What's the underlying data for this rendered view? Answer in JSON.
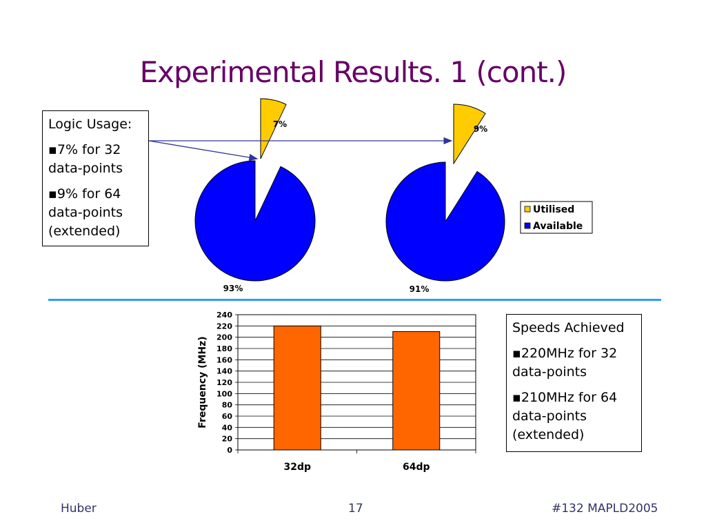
{
  "slide": {
    "title": "Experimental Results. 1 (cont.)",
    "logic_box": {
      "heading": "Logic Usage:",
      "items": [
        "▪7% for 32 data-points",
        "▪9% for 64 data-points (extended)"
      ]
    },
    "speed_box": {
      "heading": "Speeds Achieved",
      "items": [
        "▪220MHz for 32 data-points",
        "▪210MHz for 64 data-points (extended)"
      ]
    },
    "footer": {
      "left": "Huber",
      "center": "17",
      "right": "#132 MAPLD2005"
    }
  },
  "colors": {
    "title": "#660066",
    "utilised": "#ffcc00",
    "available": "#0000ff",
    "bar": "#ff6600",
    "divider": "#3399ff"
  },
  "chart_data": [
    {
      "type": "pie",
      "series": [
        {
          "labels": [
            "Utilised",
            "Available"
          ],
          "values": [
            7,
            93
          ],
          "data_labels": [
            "7%",
            "93%"
          ]
        },
        {
          "labels": [
            "Utilised",
            "Available"
          ],
          "values": [
            9,
            91
          ],
          "data_labels": [
            "9%",
            "91%"
          ]
        }
      ],
      "legend": {
        "entries": [
          "Utilised",
          "Available"
        ],
        "placement": "right"
      },
      "exploded_slice": "Utilised"
    },
    {
      "type": "bar",
      "categories": [
        "32dp",
        "64dp"
      ],
      "values": [
        220,
        210
      ],
      "ylabel": "Frequency (MHz)",
      "xlabel": "",
      "ylim": [
        0,
        240
      ],
      "yticks": [
        "0",
        "20",
        "40",
        "60",
        "80",
        "100",
        "120",
        "140",
        "160",
        "180",
        "200",
        "220",
        "240"
      ],
      "grid": true
    }
  ]
}
